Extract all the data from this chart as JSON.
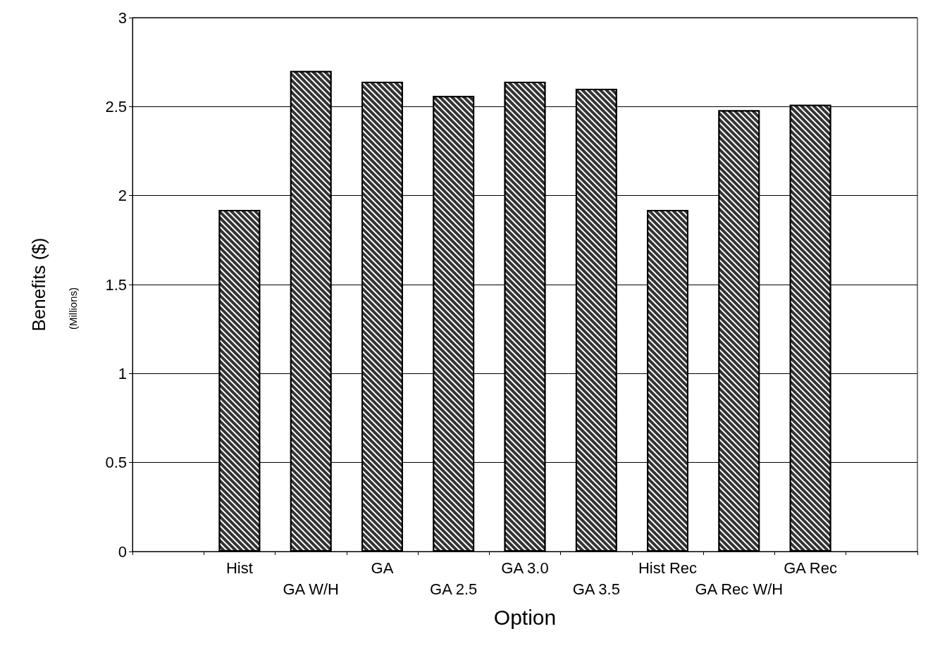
{
  "chart_data": {
    "type": "bar",
    "xlabel": "Option",
    "ylabel": "Benefits ($)",
    "annotations": [
      "(Millions)"
    ],
    "categories": [
      null,
      "Hist",
      "GA W/H",
      "GA",
      "GA 2.5",
      "GA 3.0",
      "GA 3.5",
      "Hist Rec",
      "GA Rec W/H",
      "GA Rec",
      null
    ],
    "values": [
      null,
      1.92,
      2.7,
      2.64,
      2.56,
      2.64,
      2.6,
      1.92,
      2.48,
      2.51,
      null
    ],
    "color": "#333333",
    "ylim": [
      0,
      3
    ],
    "yticks": [
      0,
      0.5,
      1,
      1.5,
      2,
      2.5,
      3
    ],
    "grid": "y"
  }
}
